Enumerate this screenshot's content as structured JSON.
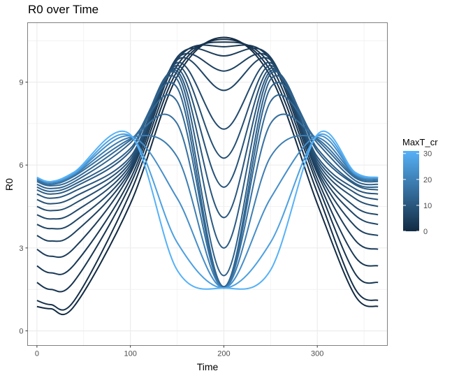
{
  "chart_data": {
    "type": "line",
    "title": "R0 over Time",
    "xlabel": "Time",
    "ylabel": "R0",
    "xlim": [
      -10,
      375
    ],
    "ylim": [
      -0.53,
      11.15
    ],
    "x_ticks": [
      0,
      100,
      200,
      300
    ],
    "y_ticks": [
      0,
      3,
      6,
      9
    ],
    "grid": true,
    "legend": {
      "title": "MaxT_cr",
      "position": "right",
      "ticks": [
        0,
        10,
        20,
        30
      ],
      "range": [
        0,
        31
      ],
      "color_low": "#132b43",
      "color_high": "#56b1f7"
    },
    "series": [
      {
        "maxt_cr": 0,
        "x": [
          0,
          15,
          40,
          100,
          150,
          200,
          250,
          300,
          340,
          365
        ],
        "y": [
          0.88,
          0.8,
          0.9,
          4.6,
          9.2,
          10.62,
          9.2,
          4.6,
          1.3,
          0.88
        ]
      },
      {
        "maxt_cr": 1,
        "x": [
          0,
          15,
          40,
          100,
          150,
          200,
          250,
          300,
          340,
          365
        ],
        "y": [
          1.1,
          0.95,
          1.1,
          5.0,
          9.4,
          10.55,
          9.4,
          5.0,
          1.55,
          1.1
        ]
      },
      {
        "maxt_cr": 2,
        "x": [
          0,
          15,
          40,
          100,
          150,
          200,
          250,
          300,
          340,
          365
        ],
        "y": [
          1.75,
          1.5,
          1.8,
          5.3,
          9.6,
          10.45,
          9.6,
          5.3,
          2.1,
          1.75
        ]
      },
      {
        "maxt_cr": 3,
        "x": [
          0,
          15,
          40,
          100,
          150,
          200,
          250,
          300,
          340,
          365
        ],
        "y": [
          2.35,
          2.1,
          2.4,
          5.5,
          9.8,
          10.28,
          9.8,
          5.5,
          2.7,
          2.35
        ]
      },
      {
        "maxt_cr": 4,
        "x": [
          0,
          15,
          40,
          100,
          150,
          200,
          250,
          300,
          340,
          365
        ],
        "y": [
          2.95,
          2.7,
          3.0,
          5.7,
          9.9,
          9.95,
          9.9,
          5.7,
          3.3,
          2.95
        ]
      },
      {
        "maxt_cr": 5,
        "x": [
          0,
          15,
          40,
          100,
          150,
          200,
          250,
          300,
          340,
          365
        ],
        "y": [
          3.45,
          3.25,
          3.55,
          5.8,
          9.85,
          9.4,
          9.85,
          5.8,
          3.8,
          3.45
        ]
      },
      {
        "maxt_cr": 6,
        "x": [
          0,
          15,
          40,
          100,
          150,
          200,
          250,
          300,
          340,
          365
        ],
        "y": [
          3.85,
          3.7,
          3.95,
          5.9,
          9.8,
          8.7,
          9.8,
          5.9,
          4.2,
          3.85
        ]
      },
      {
        "maxt_cr": 7,
        "x": [
          0,
          15,
          40,
          100,
          150,
          200,
          250,
          300,
          340,
          365
        ],
        "y": [
          4.2,
          4.05,
          4.3,
          6.0,
          9.7,
          7.3,
          9.7,
          6.0,
          4.5,
          4.2
        ]
      },
      {
        "maxt_cr": 8,
        "x": [
          0,
          15,
          40,
          100,
          150,
          200,
          250,
          300,
          340,
          365
        ],
        "y": [
          4.5,
          4.35,
          4.6,
          6.1,
          9.6,
          6.25,
          9.6,
          6.1,
          4.8,
          4.5
        ]
      },
      {
        "maxt_cr": 9,
        "x": [
          0,
          15,
          40,
          100,
          150,
          200,
          250,
          300,
          340,
          365
        ],
        "y": [
          4.75,
          4.6,
          4.85,
          6.2,
          9.5,
          5.2,
          9.5,
          6.2,
          5.0,
          4.75
        ]
      },
      {
        "maxt_cr": 10,
        "x": [
          0,
          15,
          40,
          100,
          150,
          200,
          250,
          300,
          340,
          365
        ],
        "y": [
          4.95,
          4.8,
          5.05,
          6.3,
          9.4,
          4.1,
          9.4,
          6.3,
          5.15,
          4.95
        ]
      },
      {
        "maxt_cr": 11,
        "x": [
          0,
          15,
          40,
          100,
          150,
          200,
          250,
          300,
          340,
          365
        ],
        "y": [
          5.1,
          4.95,
          5.2,
          6.5,
          9.3,
          3.0,
          9.3,
          6.5,
          5.3,
          5.1
        ]
      },
      {
        "maxt_cr": 12,
        "x": [
          0,
          15,
          40,
          100,
          150,
          200,
          250,
          300,
          340,
          365
        ],
        "y": [
          5.2,
          5.05,
          5.3,
          6.6,
          9.1,
          2.0,
          9.1,
          6.6,
          5.35,
          5.2
        ]
      },
      {
        "maxt_cr": 13,
        "x": [
          0,
          15,
          40,
          100,
          150,
          200,
          250,
          300,
          340,
          365
        ],
        "y": [
          5.3,
          5.15,
          5.4,
          6.8,
          8.8,
          1.6,
          8.8,
          6.8,
          5.45,
          5.3
        ]
      },
      {
        "maxt_cr": 14,
        "x": [
          0,
          15,
          40,
          100,
          150,
          200,
          250,
          300,
          340,
          365
        ],
        "y": [
          5.4,
          5.25,
          5.5,
          6.9,
          8.3,
          1.55,
          8.3,
          6.9,
          5.55,
          5.4
        ]
      },
      {
        "maxt_cr": 16,
        "x": [
          0,
          15,
          40,
          100,
          150,
          200,
          250,
          300,
          340,
          365
        ],
        "y": [
          5.45,
          5.3,
          5.6,
          6.95,
          7.5,
          1.55,
          7.5,
          6.95,
          5.6,
          5.45
        ]
      },
      {
        "maxt_cr": 19,
        "x": [
          0,
          15,
          40,
          100,
          150,
          200,
          250,
          300,
          340,
          365
        ],
        "y": [
          5.5,
          5.35,
          5.65,
          7.0,
          6.3,
          1.55,
          6.3,
          7.0,
          5.65,
          5.5
        ]
      },
      {
        "maxt_cr": 23,
        "x": [
          0,
          15,
          40,
          100,
          150,
          200,
          250,
          300,
          340,
          365
        ],
        "y": [
          5.52,
          5.37,
          5.68,
          7.05,
          4.8,
          1.55,
          4.8,
          7.05,
          5.68,
          5.52
        ]
      },
      {
        "maxt_cr": 27,
        "x": [
          0,
          15,
          40,
          100,
          150,
          200,
          250,
          300,
          340,
          365
        ],
        "y": [
          5.55,
          5.4,
          5.7,
          7.05,
          3.2,
          1.55,
          3.2,
          7.05,
          5.7,
          5.55
        ]
      },
      {
        "maxt_cr": 31,
        "x": [
          0,
          15,
          40,
          100,
          150,
          200,
          250,
          300,
          340,
          365
        ],
        "y": [
          5.55,
          5.4,
          5.75,
          7.1,
          2.2,
          1.55,
          2.2,
          7.1,
          5.75,
          5.55
        ]
      }
    ]
  }
}
